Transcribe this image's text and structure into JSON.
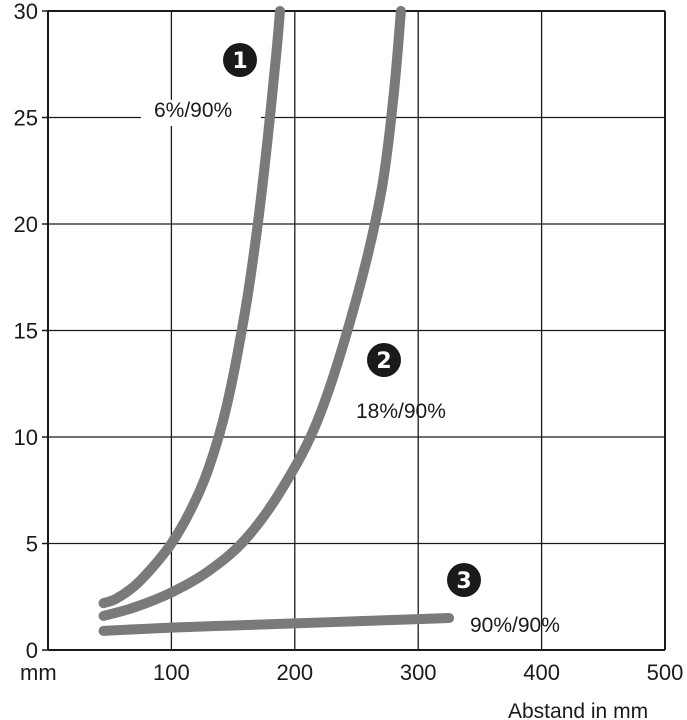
{
  "chart_data": {
    "type": "line",
    "title": "",
    "xlabel": "Abstand in mm",
    "ylabel": "mm",
    "xlim": [
      0,
      500
    ],
    "ylim": [
      0,
      30
    ],
    "x_ticks": [
      "100",
      "200",
      "300",
      "400",
      "500"
    ],
    "y_ticks": [
      "0",
      "5",
      "10",
      "15",
      "20",
      "25",
      "30"
    ],
    "grid": true,
    "colors": {
      "curve": "#7a7a7a",
      "grid": "#1a1a1a"
    },
    "series": [
      {
        "name": "6%/90%",
        "marker": "1",
        "x": [
          45,
          55,
          70,
          85,
          100,
          115,
          130,
          145,
          160,
          170,
          178,
          185,
          188
        ],
        "y": [
          2.2,
          2.4,
          3.0,
          3.9,
          5.0,
          6.5,
          8.5,
          11.5,
          16.0,
          20.0,
          24.0,
          28.0,
          30.0
        ]
      },
      {
        "name": "18%/90%",
        "marker": "2",
        "x": [
          45,
          70,
          100,
          130,
          160,
          190,
          220,
          250,
          270,
          280,
          286
        ],
        "y": [
          1.6,
          2.0,
          2.7,
          3.7,
          5.2,
          7.6,
          11.0,
          16.5,
          21.5,
          26.0,
          30.0
        ]
      },
      {
        "name": "90%/90%",
        "marker": "3",
        "x": [
          45,
          100,
          150,
          200,
          250,
          300,
          325
        ],
        "y": [
          0.9,
          1.05,
          1.15,
          1.25,
          1.35,
          1.45,
          1.5
        ]
      }
    ]
  }
}
